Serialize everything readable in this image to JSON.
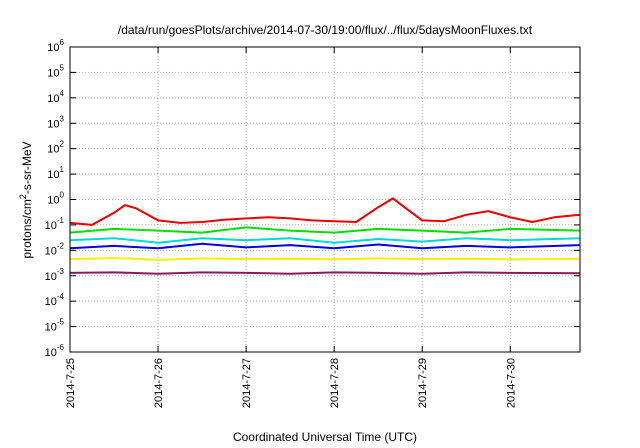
{
  "chart_data": {
    "type": "line",
    "title": "/data/run/goesPlots/archive/2014-07-30/19:00/flux/../flux/5daysMoonFluxes.txt",
    "xlabel": "Coordinated Universal Time (UTC)",
    "ylabel_base": "protons/cm",
    "ylabel_sup": "2",
    "ylabel_rest": "-s-sr-MeV",
    "y_scale": "log",
    "ylim_exponents": [
      -6,
      6
    ],
    "y_ticks": [
      {
        "base": "10",
        "exp": "6"
      },
      {
        "base": "10",
        "exp": "5"
      },
      {
        "base": "10",
        "exp": "4"
      },
      {
        "base": "10",
        "exp": "3"
      },
      {
        "base": "10",
        "exp": "2"
      },
      {
        "base": "10",
        "exp": "1"
      },
      {
        "base": "10",
        "exp": "0"
      },
      {
        "base": "10",
        "exp": "-1"
      },
      {
        "base": "10",
        "exp": "-2"
      },
      {
        "base": "10",
        "exp": "-3"
      },
      {
        "base": "10",
        "exp": "-4"
      },
      {
        "base": "10",
        "exp": "-5"
      },
      {
        "base": "10",
        "exp": "-6"
      }
    ],
    "x_range_days": [
      "2014-07-25",
      "2014-07-30T19:00"
    ],
    "x_ticks": [
      "2014-7-25",
      "2014-7-26",
      "2014-7-27",
      "2014-7-28",
      "2014-7-29",
      "2014-7-30"
    ],
    "grid": true,
    "legend": "none",
    "series": [
      {
        "color": "#ee0000",
        "x": [
          "2014-07-25T00:00",
          "2014-07-25T06:00",
          "2014-07-25T12:00",
          "2014-07-25T15:00",
          "2014-07-25T18:00",
          "2014-07-26T00:00",
          "2014-07-26T06:00",
          "2014-07-26T12:00",
          "2014-07-26T18:00",
          "2014-07-27T00:00",
          "2014-07-27T06:00",
          "2014-07-27T12:00",
          "2014-07-27T18:00",
          "2014-07-28T00:00",
          "2014-07-28T06:00",
          "2014-07-28T12:00",
          "2014-07-28T16:00",
          "2014-07-28T20:00",
          "2014-07-29T00:00",
          "2014-07-29T06:00",
          "2014-07-29T12:00",
          "2014-07-29T18:00",
          "2014-07-30T00:00",
          "2014-07-30T06:00",
          "2014-07-30T12:00",
          "2014-07-30T19:00"
        ],
        "y": [
          0.12,
          0.1,
          0.3,
          0.6,
          0.45,
          0.15,
          0.12,
          0.13,
          0.16,
          0.18,
          0.2,
          0.18,
          0.15,
          0.14,
          0.13,
          0.5,
          1.1,
          0.4,
          0.15,
          0.14,
          0.25,
          0.35,
          0.2,
          0.13,
          0.2,
          0.25
        ]
      },
      {
        "color": "#00e000",
        "x": [
          "2014-07-25T00:00",
          "2014-07-25T12:00",
          "2014-07-26T00:00",
          "2014-07-26T12:00",
          "2014-07-27T00:00",
          "2014-07-27T12:00",
          "2014-07-28T00:00",
          "2014-07-28T12:00",
          "2014-07-29T00:00",
          "2014-07-29T12:00",
          "2014-07-30T00:00",
          "2014-07-30T19:00"
        ],
        "y": [
          0.05,
          0.07,
          0.06,
          0.05,
          0.08,
          0.06,
          0.05,
          0.07,
          0.06,
          0.05,
          0.07,
          0.06
        ]
      },
      {
        "color": "#00d8d8",
        "x": [
          "2014-07-25T00:00",
          "2014-07-25T12:00",
          "2014-07-26T00:00",
          "2014-07-26T12:00",
          "2014-07-27T00:00",
          "2014-07-27T12:00",
          "2014-07-28T00:00",
          "2014-07-28T12:00",
          "2014-07-29T00:00",
          "2014-07-29T12:00",
          "2014-07-30T00:00",
          "2014-07-30T19:00"
        ],
        "y": [
          0.025,
          0.03,
          0.02,
          0.03,
          0.025,
          0.03,
          0.02,
          0.028,
          0.022,
          0.03,
          0.025,
          0.03
        ]
      },
      {
        "color": "#0000ee",
        "x": [
          "2014-07-25T00:00",
          "2014-07-25T12:00",
          "2014-07-26T00:00",
          "2014-07-26T12:00",
          "2014-07-27T00:00",
          "2014-07-27T12:00",
          "2014-07-28T00:00",
          "2014-07-28T12:00",
          "2014-07-29T00:00",
          "2014-07-29T12:00",
          "2014-07-30T00:00",
          "2014-07-30T19:00"
        ],
        "y": [
          0.012,
          0.015,
          0.012,
          0.018,
          0.013,
          0.016,
          0.012,
          0.017,
          0.012,
          0.015,
          0.013,
          0.016
        ]
      },
      {
        "color": "#ffee00",
        "x": [
          "2014-07-25T00:00",
          "2014-07-25T12:00",
          "2014-07-26T00:00",
          "2014-07-26T12:00",
          "2014-07-27T00:00",
          "2014-07-27T12:00",
          "2014-07-28T00:00",
          "2014-07-28T12:00",
          "2014-07-29T00:00",
          "2014-07-29T12:00",
          "2014-07-30T00:00",
          "2014-07-30T19:00"
        ],
        "y": [
          0.0045,
          0.005,
          0.0042,
          0.0048,
          0.0045,
          0.0047,
          0.0044,
          0.0048,
          0.0045,
          0.0047,
          0.0044,
          0.0046
        ]
      },
      {
        "color": "#8b1a5a",
        "x": [
          "2014-07-25T00:00",
          "2014-07-25T12:00",
          "2014-07-26T00:00",
          "2014-07-26T12:00",
          "2014-07-27T00:00",
          "2014-07-27T12:00",
          "2014-07-28T00:00",
          "2014-07-28T12:00",
          "2014-07-29T00:00",
          "2014-07-29T12:00",
          "2014-07-30T00:00",
          "2014-07-30T19:00"
        ],
        "y": [
          0.0013,
          0.00135,
          0.0012,
          0.00135,
          0.0013,
          0.0012,
          0.00135,
          0.0013,
          0.0012,
          0.00135,
          0.0013,
          0.00125
        ]
      }
    ]
  }
}
